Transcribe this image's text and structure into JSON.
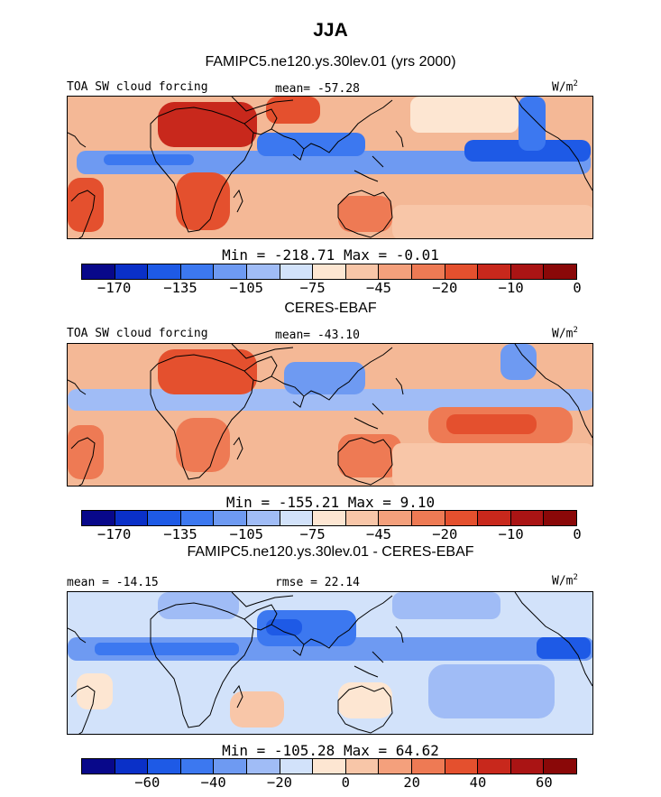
{
  "title": "JJA",
  "colorbar_colors": [
    "#08088a",
    "#0a30c8",
    "#1e5ae6",
    "#3c78f0",
    "#6e9af2",
    "#a0bcf6",
    "#d2e2fa",
    "#fde6d2",
    "#f8c6a8",
    "#f4a07c",
    "#ee7a54",
    "#e4502e",
    "#c8281c",
    "#aa1414",
    "#8a0808"
  ],
  "panels": [
    {
      "subtitle": "FAMIPC5.ne120.ys.30lev.01 (yrs 2000)",
      "left_label": "TOA SW cloud forcing",
      "mid_label": "mean= -57.28",
      "units": "W/m²",
      "units_base": "W/m",
      "units_exp": "2",
      "minmax": "Min = -218.71 Max =  -0.01",
      "ticks": [
        "-170",
        "-135",
        "-105",
        "-75",
        "-45",
        "-20",
        "-10",
        "0"
      ],
      "field": "model"
    },
    {
      "subtitle": "CERES-EBAF",
      "left_label": "TOA SW cloud forcing",
      "mid_label": "mean= -43.10",
      "units": "W/m²",
      "units_base": "W/m",
      "units_exp": "2",
      "minmax": "Min = -155.21 Max =   9.10",
      "ticks": [
        "-170",
        "-135",
        "-105",
        "-75",
        "-45",
        "-20",
        "-10",
        "0"
      ],
      "field": "obs"
    },
    {
      "subtitle": "FAMIPC5.ne120.ys.30lev.01 - CERES-EBAF",
      "left_label": "mean = -14.15",
      "mid_label": "rmse =  22.14",
      "units": "W/m²",
      "units_base": "W/m",
      "units_exp": "2",
      "minmax": "Min = -105.28 Max =  64.62",
      "ticks": [
        "-60",
        "-40",
        "-20",
        "0",
        "20",
        "40",
        "60"
      ],
      "field": "diff"
    }
  ]
}
